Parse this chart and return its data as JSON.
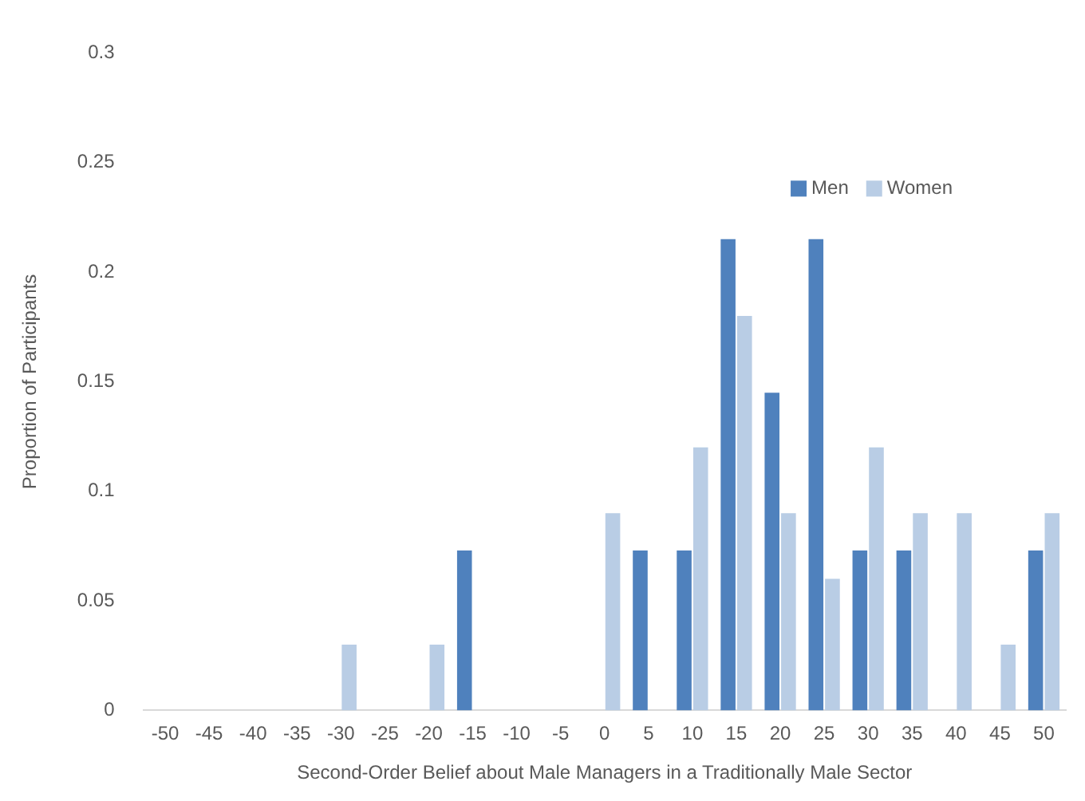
{
  "chart_data": {
    "type": "bar",
    "xlabel": "Second-Order Belief about Male Managers in a Traditionally Male Sector",
    "ylabel": "Proportion of Participants",
    "categories": [
      "-50",
      "-45",
      "-40",
      "-35",
      "-30",
      "-25",
      "-20",
      "-15",
      "-10",
      "-5",
      "0",
      "5",
      "10",
      "15",
      "20",
      "25",
      "30",
      "35",
      "40",
      "45",
      "50"
    ],
    "series": [
      {
        "name": "Men",
        "color": "#4f81bd",
        "values": [
          0,
          0,
          0,
          0,
          0,
          0,
          0,
          0.073,
          0,
          0,
          0,
          0.073,
          0.073,
          0.215,
          0.145,
          0.215,
          0.073,
          0.073,
          0,
          0,
          0.073
        ]
      },
      {
        "name": "Women",
        "color": "#b9cde5",
        "values": [
          0,
          0,
          0,
          0,
          0.03,
          0,
          0.03,
          0,
          0,
          0,
          0.09,
          0,
          0.12,
          0.18,
          0.09,
          0.06,
          0.12,
          0.09,
          0.09,
          0.03,
          0.09
        ]
      }
    ],
    "ylim": [
      0,
      0.3
    ],
    "yticks": [
      0,
      0.05,
      0.1,
      0.15,
      0.2,
      0.25,
      0.3
    ],
    "grid": false,
    "legend": "top right"
  }
}
